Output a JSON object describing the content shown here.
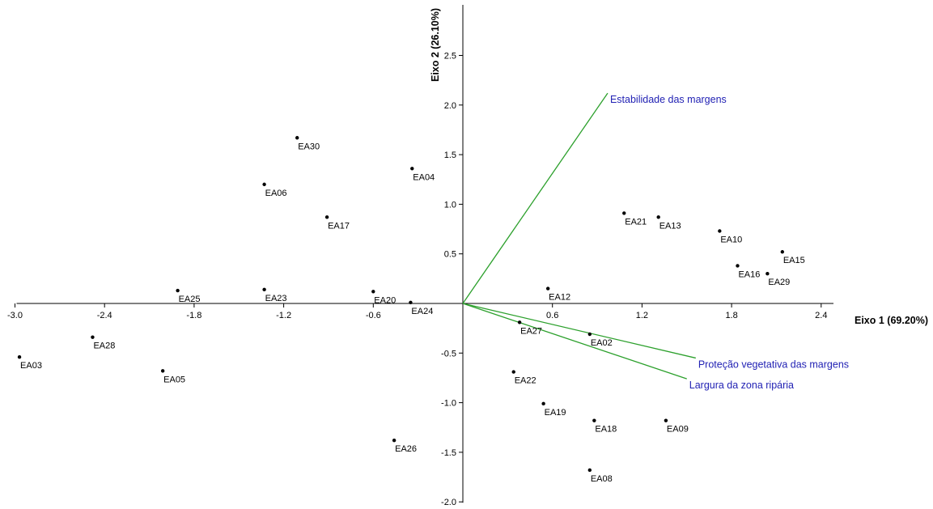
{
  "chart_data": {
    "type": "scatter",
    "title": "",
    "xlabel": "Eixo 1 (69.20%)",
    "ylabel": "Eixo 2 (26.10%)",
    "xlim": [
      -3.0,
      3.0
    ],
    "ylim": [
      -2.0,
      3.0
    ],
    "grid": false,
    "x_ticks": [
      -3.0,
      -2.4,
      -1.8,
      -1.2,
      -0.6,
      0.6,
      1.2,
      1.8,
      2.4
    ],
    "y_ticks": [
      -2.0,
      -1.5,
      -1.0,
      -0.5,
      0.5,
      1.0,
      1.5,
      2.0,
      2.5
    ],
    "colors": {
      "points": "#000000",
      "vectors": "#2ca02c",
      "vector_labels": "#2222b4"
    },
    "points": [
      {
        "label": "EA30",
        "x": -1.11,
        "y": 1.67
      },
      {
        "label": "EA04",
        "x": -0.34,
        "y": 1.36
      },
      {
        "label": "EA06",
        "x": -1.33,
        "y": 1.2
      },
      {
        "label": "EA17",
        "x": -0.91,
        "y": 0.87
      },
      {
        "label": "EA25",
        "x": -1.91,
        "y": 0.13
      },
      {
        "label": "EA23",
        "x": -1.33,
        "y": 0.14
      },
      {
        "label": "EA20",
        "x": -0.6,
        "y": 0.12
      },
      {
        "label": "EA24",
        "x": -0.35,
        "y": 0.01
      },
      {
        "label": "EA28",
        "x": -2.48,
        "y": -0.34
      },
      {
        "label": "EA03",
        "x": -2.97,
        "y": -0.54
      },
      {
        "label": "EA05",
        "x": -2.01,
        "y": -0.68
      },
      {
        "label": "EA26",
        "x": -0.46,
        "y": -1.38
      },
      {
        "label": "EA21",
        "x": 1.08,
        "y": 0.91
      },
      {
        "label": "EA13",
        "x": 1.31,
        "y": 0.87
      },
      {
        "label": "EA10",
        "x": 1.72,
        "y": 0.73
      },
      {
        "label": "EA15",
        "x": 2.14,
        "y": 0.52
      },
      {
        "label": "EA16",
        "x": 1.84,
        "y": 0.38
      },
      {
        "label": "EA29",
        "x": 2.04,
        "y": 0.3
      },
      {
        "label": "EA12",
        "x": 0.57,
        "y": 0.15
      },
      {
        "label": "EA27",
        "x": 0.38,
        "y": -0.19
      },
      {
        "label": "EA02",
        "x": 0.85,
        "y": -0.31
      },
      {
        "label": "EA22",
        "x": 0.34,
        "y": -0.69
      },
      {
        "label": "EA19",
        "x": 0.54,
        "y": -1.01
      },
      {
        "label": "EA18",
        "x": 0.88,
        "y": -1.18
      },
      {
        "label": "EA09",
        "x": 1.36,
        "y": -1.18
      },
      {
        "label": "EA08",
        "x": 0.85,
        "y": -1.68
      }
    ],
    "vectors": [
      {
        "label": "Estabilidade das margens",
        "x": 0.97,
        "y": 2.12
      },
      {
        "label": "Proteção vegetativa das margens",
        "x": 1.56,
        "y": -0.55
      },
      {
        "label": "Largura da zona ripária",
        "x": 1.5,
        "y": -0.76
      }
    ]
  }
}
